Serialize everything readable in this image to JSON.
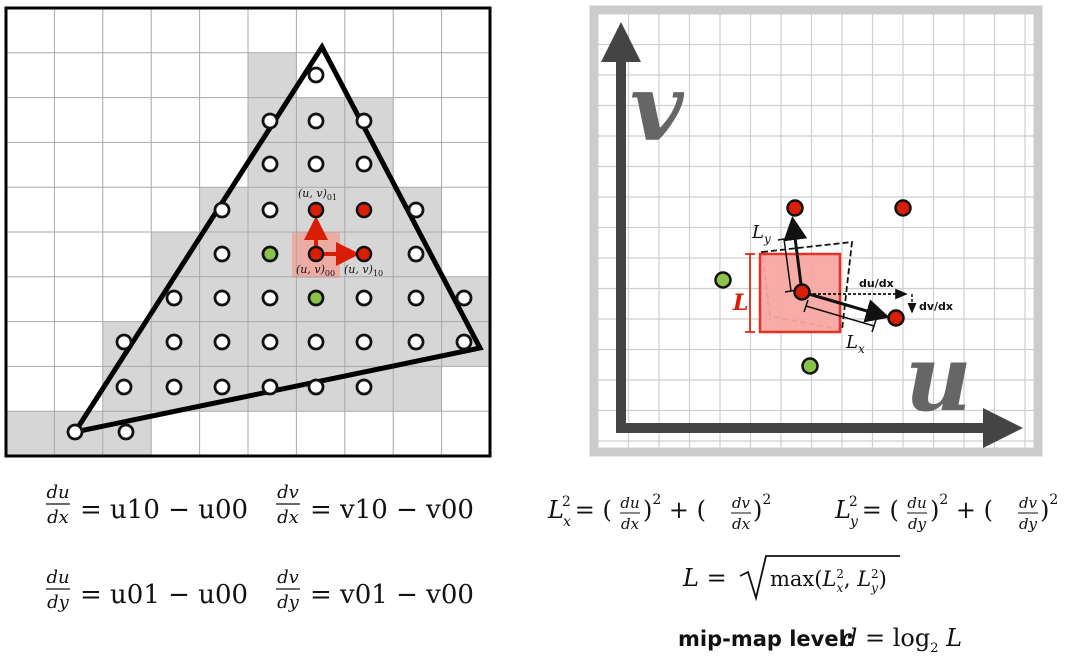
{
  "left_panel": {
    "labels": {
      "uv00": "(u, v)00",
      "uv10": "(u, v)10",
      "uv01": "(u, v)01"
    },
    "equations": {
      "r1_f1_num": "du",
      "r1_f1_den": "dx",
      "r1_f1_rhs": "= u10 − u00",
      "r1_f2_num": "dv",
      "r1_f2_den": "dx",
      "r1_f2_rhs": "= v10 − v00",
      "r2_f1_num": "du",
      "r2_f1_den": "dy",
      "r2_f1_rhs": "= u01 − u00",
      "r2_f2_num": "dv",
      "r2_f2_den": "dy",
      "r2_f2_rhs": "= v01 − v00"
    }
  },
  "right_panel": {
    "axis_u": "u",
    "axis_v": "v",
    "labels": {
      "L": "L",
      "Ly": "Ly",
      "Lx": "Lx",
      "dudx": "du/dx",
      "dvdx": "dv/dx"
    },
    "equations": {
      "lx2": "Lx² = (du/dx)² + (dv/dx)²",
      "ly2": "Ly² = (du/dy)² + (dv/dy)²",
      "l": "L = √max(Lx², Ly²)",
      "mip_label": "mip-map level:",
      "mip_eq": "d = log₂ L"
    }
  },
  "colors": {
    "red_dot": "#d81e05",
    "green_dot": "#8bc34a",
    "grid": "#a9a9a9",
    "shaded_cell": "#d6d6d6",
    "pink_square": "#f7a8a4",
    "pink_border": "#e02a1a",
    "axis": "#444444",
    "frame": "#cccccc"
  }
}
